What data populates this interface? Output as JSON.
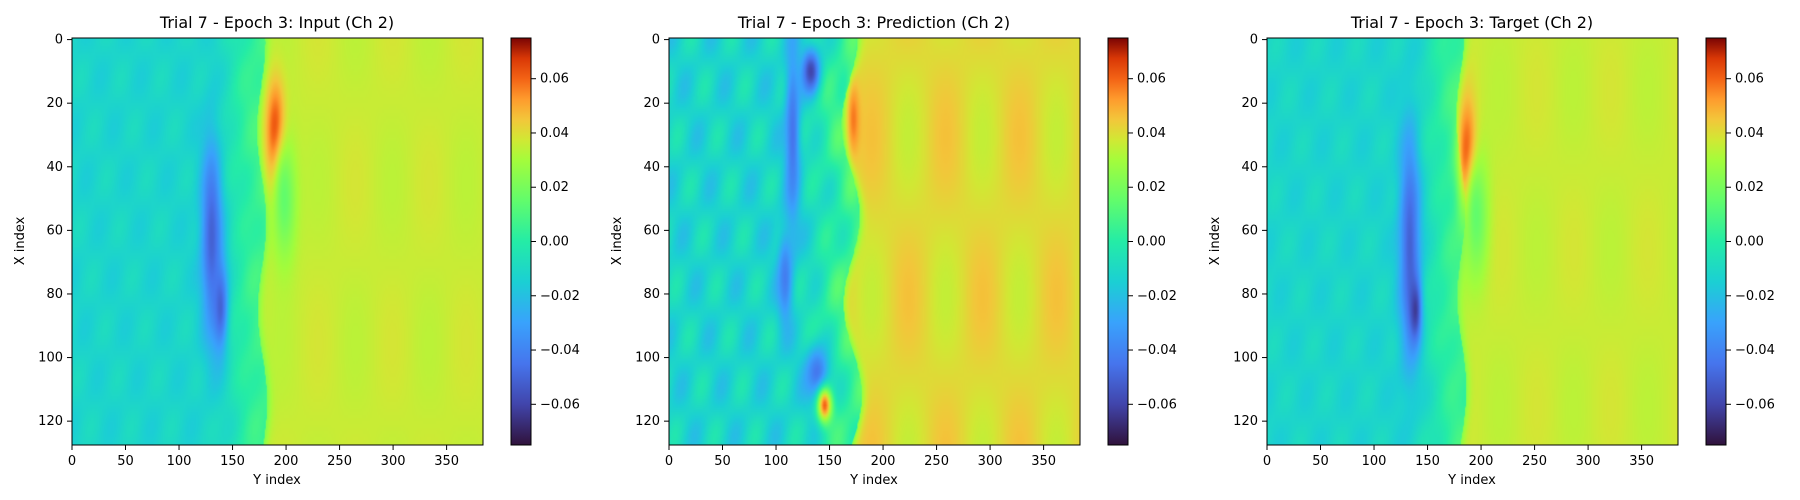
{
  "chart_data": [
    {
      "type": "heatmap",
      "title": "Trial 7 - Epoch 3: Input (Ch 2)",
      "xlabel": "Y index",
      "ylabel": "X index",
      "xlim": [
        0,
        383
      ],
      "ylim": [
        127,
        0
      ],
      "xticks": [
        "0",
        "50",
        "100",
        "150",
        "200",
        "250",
        "300",
        "350"
      ],
      "yticks": [
        "0",
        "20",
        "40",
        "60",
        "80",
        "100",
        "120"
      ],
      "colorbar": {
        "colormap": "turbo",
        "range": [
          -0.075,
          0.075
        ],
        "ticks": [
          "0.06",
          "0.04",
          "0.02",
          "0.00",
          "−0.02",
          "−0.04",
          "−0.06"
        ]
      },
      "field": {
        "front_y_top": 176,
        "front_y_bottom": 178,
        "front_wiggle": 4,
        "left_level": 0.42,
        "right_level": 0.74,
        "blobs": [
          {
            "x": 62,
            "y": 130,
            "sx": 22,
            "sy": 7,
            "v": 0.16
          },
          {
            "x": 84,
            "y": 138,
            "sx": 10,
            "sy": 5,
            "v": 0.16
          },
          {
            "x": 30,
            "y": 190,
            "sx": 11,
            "sy": 6,
            "v": 0.97
          },
          {
            "x": 50,
            "y": 198,
            "sx": 14,
            "sy": 8,
            "v": 0.6
          }
        ],
        "noise": 0.025
      }
    },
    {
      "type": "heatmap",
      "title": "Trial 7 - Epoch 3: Prediction (Ch 2)",
      "xlabel": "Y index",
      "ylabel": "X index",
      "xlim": [
        0,
        383
      ],
      "ylim": [
        127,
        0
      ],
      "xticks": [
        "0",
        "50",
        "100",
        "150",
        "200",
        "250",
        "300",
        "350"
      ],
      "yticks": [
        "0",
        "20",
        "40",
        "60",
        "80",
        "100",
        "120"
      ],
      "colorbar": {
        "colormap": "turbo",
        "range": [
          -0.075,
          0.075
        ],
        "ticks": [
          "0.06",
          "0.04",
          "0.02",
          "0.00",
          "−0.02",
          "−0.04",
          "−0.06"
        ]
      },
      "field": {
        "front_y_top": 168,
        "front_y_bottom": 172,
        "front_wiggle": 8,
        "left_level": 0.42,
        "right_level": 0.77,
        "blobs": [
          {
            "x": 10,
            "y": 132,
            "sx": 5,
            "sy": 6,
            "v": 0.1
          },
          {
            "x": 30,
            "y": 115,
            "sx": 20,
            "sy": 5,
            "v": 0.2
          },
          {
            "x": 75,
            "y": 108,
            "sx": 10,
            "sy": 5,
            "v": 0.22
          },
          {
            "x": 105,
            "y": 138,
            "sx": 6,
            "sy": 8,
            "v": 0.2
          },
          {
            "x": 25,
            "y": 172,
            "sx": 8,
            "sy": 4,
            "v": 0.88
          },
          {
            "x": 115,
            "y": 145,
            "sx": 4,
            "sy": 5,
            "v": 0.9
          }
        ],
        "noise": 0.06
      }
    },
    {
      "type": "heatmap",
      "title": "Trial 7 - Epoch 3: Target (Ch 2)",
      "xlabel": "Y index",
      "ylabel": "X index",
      "xlim": [
        0,
        383
      ],
      "ylim": [
        127,
        0
      ],
      "xticks": [
        "0",
        "50",
        "100",
        "150",
        "200",
        "250",
        "300",
        "350"
      ],
      "yticks": [
        "0",
        "20",
        "40",
        "60",
        "80",
        "100",
        "120"
      ],
      "colorbar": {
        "colormap": "turbo",
        "range": [
          -0.075,
          0.075
        ],
        "ticks": [
          "0.06",
          "0.04",
          "0.02",
          "0.00",
          "−0.02",
          "−0.04",
          "−0.06"
        ]
      },
      "field": {
        "front_y_top": 180,
        "front_y_bottom": 182,
        "front_wiggle": 4,
        "left_level": 0.42,
        "right_level": 0.74,
        "blobs": [
          {
            "x": 65,
            "y": 133,
            "sx": 26,
            "sy": 7,
            "v": 0.16
          },
          {
            "x": 85,
            "y": 138,
            "sx": 7,
            "sy": 4,
            "v": 0.08
          },
          {
            "x": 38,
            "y": 187,
            "sx": 12,
            "sy": 6,
            "v": 0.97
          },
          {
            "x": 55,
            "y": 195,
            "sx": 14,
            "sy": 8,
            "v": 0.6
          }
        ],
        "noise": 0.025
      }
    }
  ]
}
